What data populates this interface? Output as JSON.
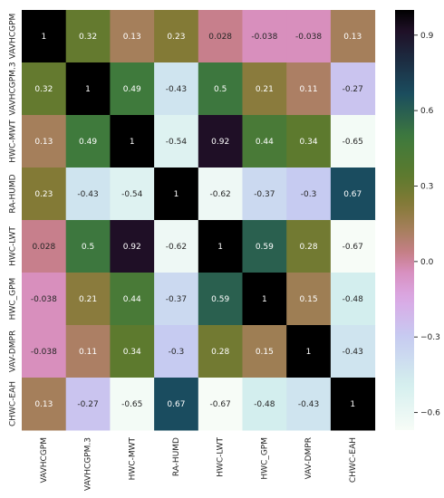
{
  "chart_data": {
    "type": "heatmap",
    "title": "",
    "xlabel": "",
    "ylabel": "",
    "rows": [
      "VAVHCGPM",
      "VAVHCGPM.3",
      "HWC-MWT",
      "RA-HUMD",
      "HWC-LWT",
      "HWC_GPM",
      "VAV-DMPR",
      "CHWC-EAH"
    ],
    "columns": [
      "VAVHCGPM",
      "VAVHCGPM.3",
      "HWC-MWT",
      "RA-HUMD",
      "HWC-LWT",
      "HWC_GPM",
      "VAV-DMPR",
      "CHWC-EAH"
    ],
    "values": [
      [
        1,
        0.32,
        0.13,
        0.23,
        0.028,
        -0.038,
        -0.038,
        0.13
      ],
      [
        0.32,
        1,
        0.49,
        -0.43,
        0.5,
        0.21,
        0.11,
        -0.27
      ],
      [
        0.13,
        0.49,
        1,
        -0.54,
        0.92,
        0.44,
        0.34,
        -0.65
      ],
      [
        0.23,
        -0.43,
        -0.54,
        1,
        -0.62,
        -0.37,
        -0.3,
        0.67
      ],
      [
        0.028,
        0.5,
        0.92,
        -0.62,
        1,
        0.59,
        0.28,
        -0.67
      ],
      [
        -0.038,
        0.21,
        0.44,
        -0.37,
        0.59,
        1,
        0.15,
        -0.48
      ],
      [
        -0.038,
        0.11,
        0.34,
        -0.3,
        0.28,
        0.15,
        1,
        -0.43
      ],
      [
        0.13,
        -0.27,
        -0.65,
        0.67,
        -0.67,
        -0.48,
        -0.43,
        1
      ]
    ],
    "cell_text": [
      [
        "1",
        "0.32",
        "0.13",
        "0.23",
        "0.028",
        "-0.038",
        "-0.038",
        "0.13"
      ],
      [
        "0.32",
        "1",
        "0.49",
        "-0.43",
        "0.5",
        "0.21",
        "0.11",
        "-0.27"
      ],
      [
        "0.13",
        "0.49",
        "1",
        "-0.54",
        "0.92",
        "0.44",
        "0.34",
        "-0.65"
      ],
      [
        "0.23",
        "-0.43",
        "-0.54",
        "1",
        "-0.62",
        "-0.37",
        "-0.3",
        "0.67"
      ],
      [
        "0.028",
        "0.5",
        "0.92",
        "-0.62",
        "1",
        "0.59",
        "0.28",
        "-0.67"
      ],
      [
        "-0.038",
        "0.21",
        "0.44",
        "-0.37",
        "0.59",
        "1",
        "0.15",
        "-0.48"
      ],
      [
        "-0.038",
        "0.11",
        "0.34",
        "-0.3",
        "0.28",
        "0.15",
        "1",
        "-0.43"
      ],
      [
        "0.13",
        "-0.27",
        "-0.65",
        "0.67",
        "-0.67",
        "-0.48",
        "-0.43",
        "1"
      ]
    ],
    "colorbar": {
      "range": [
        -0.67,
        1.0
      ],
      "ticks": [
        0.9,
        0.6,
        0.3,
        0.0,
        -0.3,
        -0.6
      ],
      "tick_labels": [
        "0.9",
        "0.6",
        "0.3",
        "0.0",
        "−0.3",
        "−0.6"
      ]
    },
    "colormap": {
      "name": "cubehelix_r",
      "stops": [
        {
          "v": -0.67,
          "color": "#f7fcf7"
        },
        {
          "v": -0.48,
          "color": "#d3eeee"
        },
        {
          "v": -0.3,
          "color": "#c6cbf1"
        },
        {
          "v": -0.15,
          "color": "#dba9e6"
        },
        {
          "v": -0.04,
          "color": "#d88fbf"
        },
        {
          "v": 0.03,
          "color": "#c77f8a"
        },
        {
          "v": 0.13,
          "color": "#a57f5b"
        },
        {
          "v": 0.23,
          "color": "#837a36"
        },
        {
          "v": 0.34,
          "color": "#5d7a2e"
        },
        {
          "v": 0.49,
          "color": "#3f7a3c"
        },
        {
          "v": 0.67,
          "color": "#1a4c5f"
        },
        {
          "v": 0.92,
          "color": "#1f0f26"
        },
        {
          "v": 1.0,
          "color": "#000000"
        }
      ]
    },
    "light_text_color": "#ffffff",
    "dark_text_color": "#262626"
  }
}
